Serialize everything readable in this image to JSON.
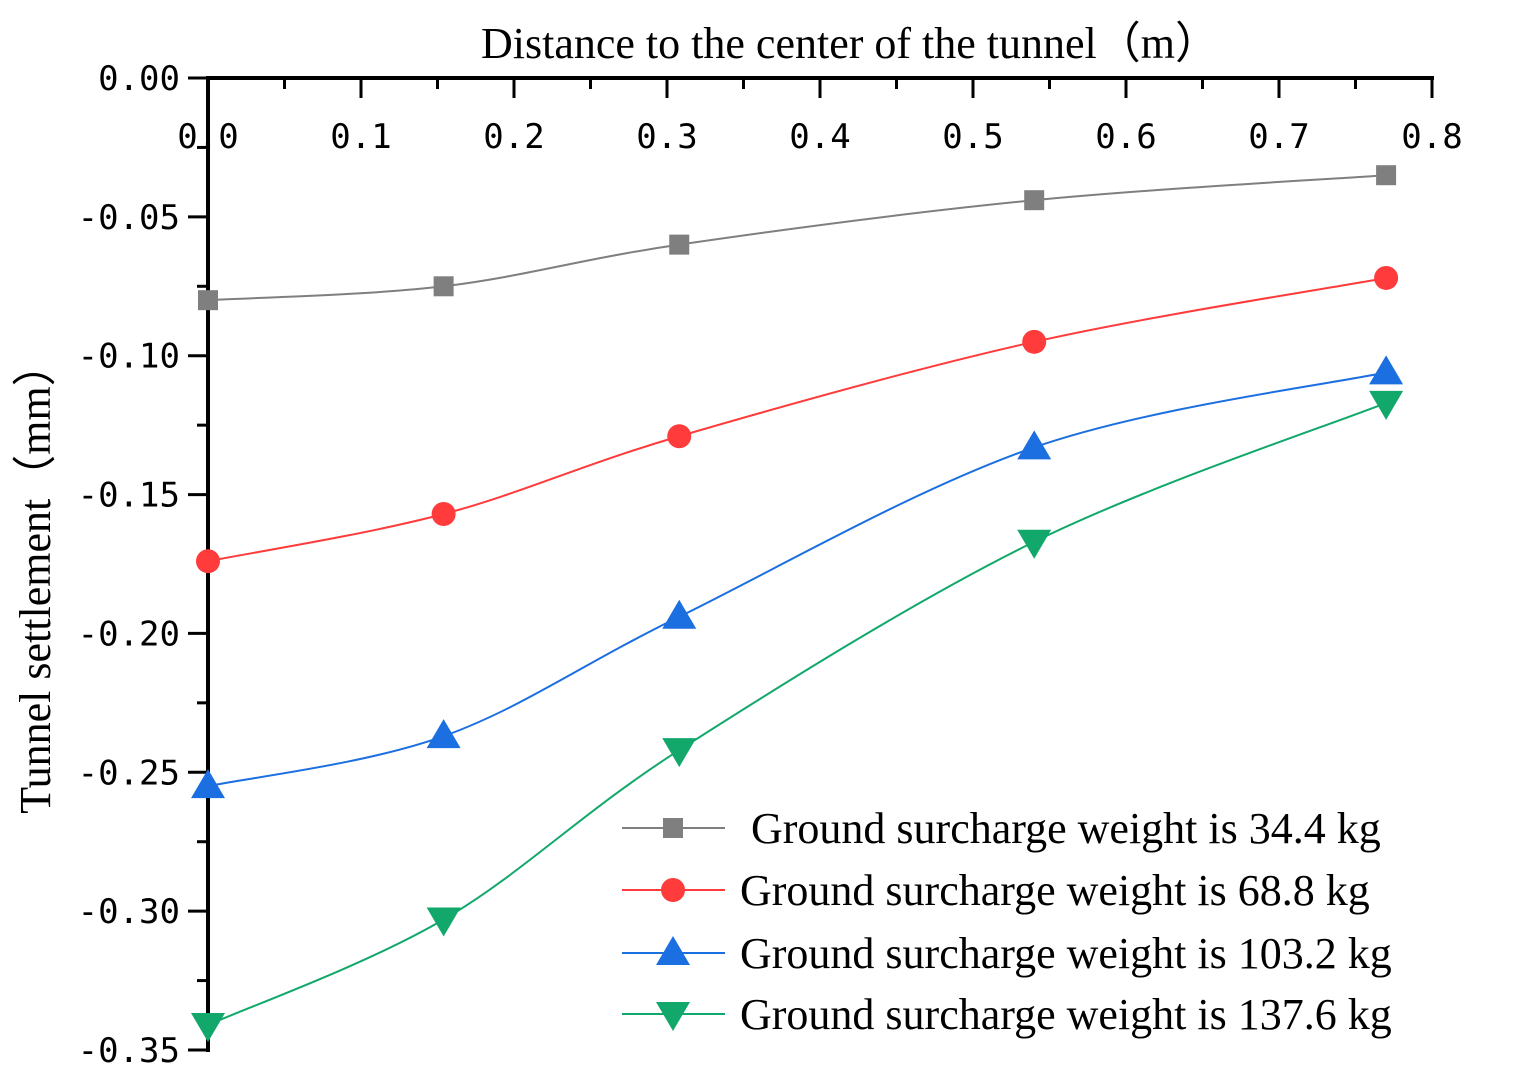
{
  "chart_data": {
    "type": "line",
    "title": "",
    "xlabel": "Distance to the center of the tunnel（m）",
    "ylabel": "Tunnel settlement（mm）",
    "xlim": [
      0,
      0.8
    ],
    "ylim": [
      -0.35,
      0.0
    ],
    "x_axis_position": "top",
    "grid": false,
    "x_ticks": [
      0.0,
      0.1,
      0.2,
      0.3,
      0.4,
      0.5,
      0.6,
      0.7,
      0.8
    ],
    "x_tick_labels": [
      "0.0",
      "0.1",
      "0.2",
      "0.3",
      "0.4",
      "0.5",
      "0.6",
      "0.7",
      "0.8"
    ],
    "y_ticks": [
      0.0,
      -0.05,
      -0.1,
      -0.15,
      -0.2,
      -0.25,
      -0.3,
      -0.35
    ],
    "y_tick_labels": [
      "0.00",
      "-0.05",
      "-0.10",
      "-0.15",
      "-0.20",
      "-0.25",
      "-0.30",
      "-0.35"
    ],
    "x": [
      0.0,
      0.154,
      0.308,
      0.54,
      0.77
    ],
    "legend_position": "bottom-right",
    "series": [
      {
        "name": " Ground surcharge weight is 34.4 kg",
        "color": "#7f7f7f",
        "marker": "square",
        "values": [
          -0.08,
          -0.075,
          -0.06,
          -0.044,
          -0.035
        ]
      },
      {
        "name": "Ground surcharge weight is 68.8 kg",
        "color": "#ff3b3b",
        "marker": "circle",
        "values": [
          -0.174,
          -0.157,
          -0.129,
          -0.095,
          -0.072
        ]
      },
      {
        "name": "Ground surcharge weight is 103.2 kg",
        "color": "#1c6fe0",
        "marker": "triangle-up",
        "values": [
          -0.255,
          -0.237,
          -0.194,
          -0.133,
          -0.106
        ]
      },
      {
        "name": "Ground surcharge weight is 137.6 kg",
        "color": "#13a86b",
        "marker": "triangle-down",
        "values": [
          -0.341,
          -0.303,
          -0.242,
          -0.167,
          -0.117
        ]
      }
    ]
  }
}
